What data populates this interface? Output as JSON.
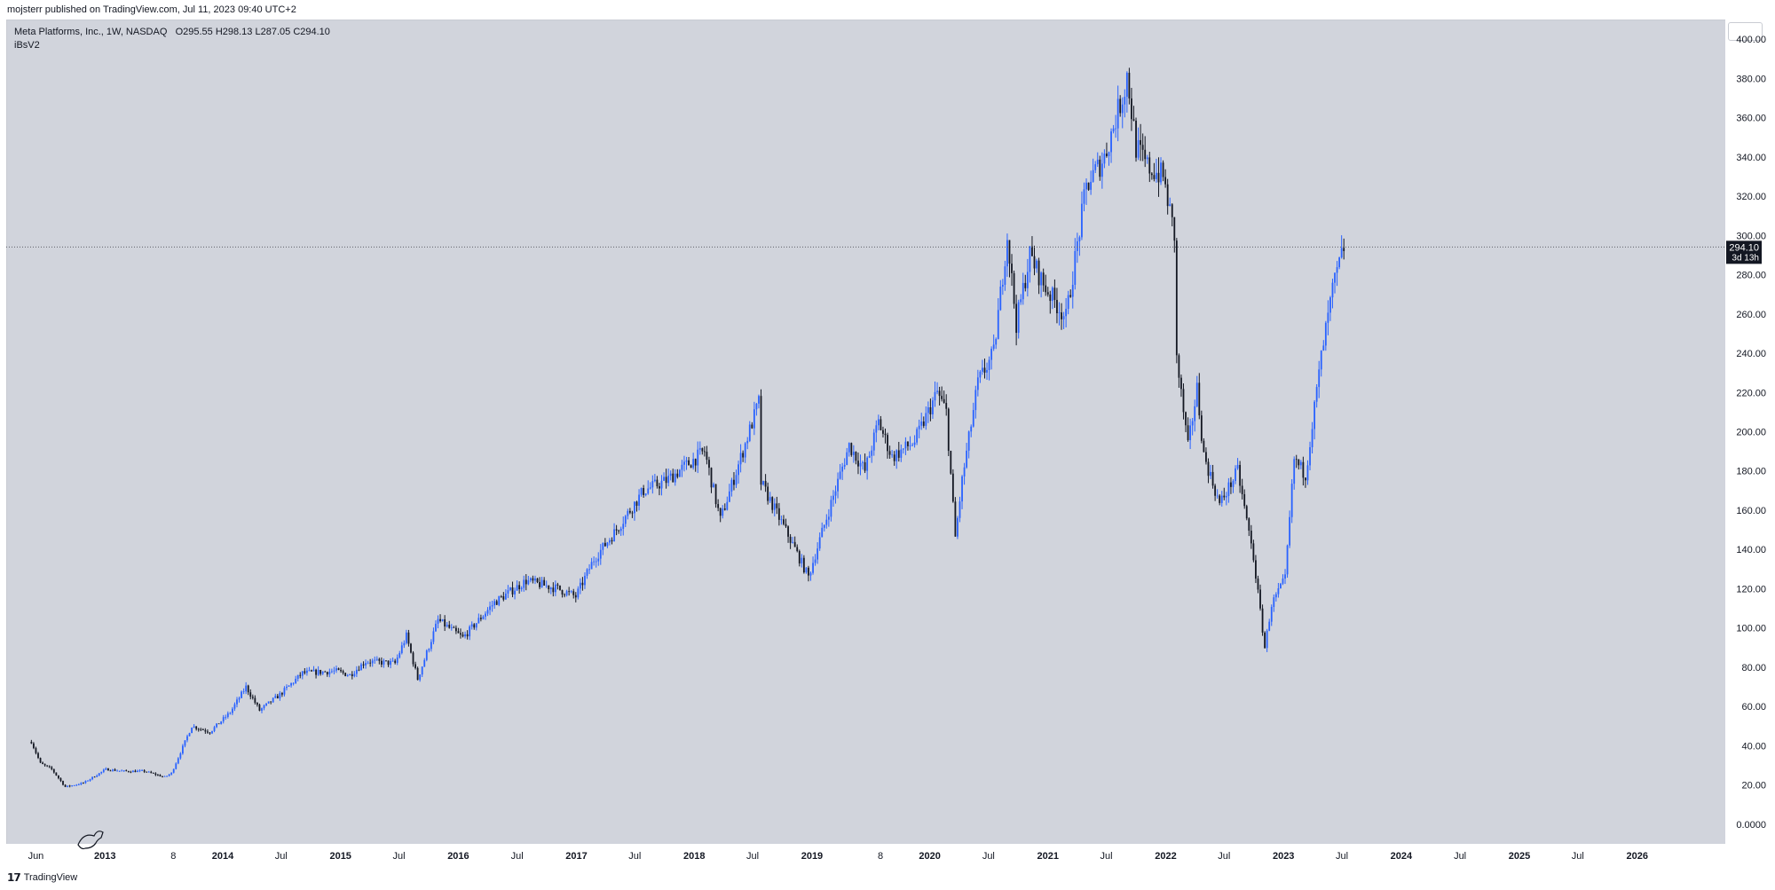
{
  "header": {
    "published_by": "mojsterr published on TradingView.com, Jul 11, 2023 09:40 UTC+2"
  },
  "legend": {
    "symbol_line": "Meta Platforms, Inc., 1W, NASDAQ",
    "ohlc": {
      "open": "O295.55",
      "high": "H298.13",
      "low": "L287.05",
      "close": "C294.10"
    },
    "indicator": "iBsV2"
  },
  "price_badge": {
    "value": "294.10",
    "countdown": "3d 13h"
  },
  "footer": {
    "brand": "TradingView"
  },
  "colors": {
    "background": "#d1d4dc",
    "up_candle": "#2962ff",
    "down_candle": "#131722",
    "last_price_line": "#5d6067",
    "badge": "#131722"
  },
  "chart_data": {
    "type": "candlestick-line",
    "symbol": "META",
    "interval": "1W",
    "ylim": [
      -10,
      410
    ],
    "y_ticks": [
      "0.0000",
      "20.00",
      "40.00",
      "60.00",
      "80.00",
      "100.00",
      "120.00",
      "140.00",
      "160.00",
      "180.00",
      "200.00",
      "220.00",
      "240.00",
      "260.00",
      "280.00",
      "300.00",
      "320.00",
      "340.00",
      "360.00",
      "380.00",
      "400.00"
    ],
    "x_range": [
      "2012-03-01",
      "2026-10-01"
    ],
    "x_ticks": [
      {
        "date": "2012-06-01",
        "label": "Jun",
        "major": false
      },
      {
        "date": "2013-01-01",
        "label": "2013",
        "major": true
      },
      {
        "date": "2013-08-01",
        "label": "8",
        "major": false
      },
      {
        "date": "2014-01-01",
        "label": "2014",
        "major": true
      },
      {
        "date": "2014-07-01",
        "label": "Jul",
        "major": false
      },
      {
        "date": "2015-01-01",
        "label": "2015",
        "major": true
      },
      {
        "date": "2015-07-01",
        "label": "Jul",
        "major": false
      },
      {
        "date": "2016-01-01",
        "label": "2016",
        "major": true
      },
      {
        "date": "2016-07-01",
        "label": "Jul",
        "major": false
      },
      {
        "date": "2017-01-01",
        "label": "2017",
        "major": true
      },
      {
        "date": "2017-07-01",
        "label": "Jul",
        "major": false
      },
      {
        "date": "2018-01-01",
        "label": "2018",
        "major": true
      },
      {
        "date": "2018-07-01",
        "label": "Jul",
        "major": false
      },
      {
        "date": "2019-01-01",
        "label": "2019",
        "major": true
      },
      {
        "date": "2019-08-01",
        "label": "8",
        "major": false
      },
      {
        "date": "2020-01-01",
        "label": "2020",
        "major": true
      },
      {
        "date": "2020-07-01",
        "label": "Jul",
        "major": false
      },
      {
        "date": "2021-01-01",
        "label": "2021",
        "major": true
      },
      {
        "date": "2021-07-01",
        "label": "Jul",
        "major": false
      },
      {
        "date": "2022-01-01",
        "label": "2022",
        "major": true
      },
      {
        "date": "2022-07-01",
        "label": "Jul",
        "major": false
      },
      {
        "date": "2023-01-01",
        "label": "2023",
        "major": true
      },
      {
        "date": "2023-07-01",
        "label": "Jul",
        "major": false
      },
      {
        "date": "2024-01-01",
        "label": "2024",
        "major": true
      },
      {
        "date": "2024-07-01",
        "label": "Jul",
        "major": false
      },
      {
        "date": "2025-01-01",
        "label": "2025",
        "major": true
      },
      {
        "date": "2025-07-01",
        "label": "Jul",
        "major": false
      },
      {
        "date": "2026-01-01",
        "label": "2026",
        "major": true
      }
    ],
    "last_price": 294.1,
    "key_points": [
      {
        "date": "2012-05-18",
        "price": 42
      },
      {
        "date": "2012-06-15",
        "price": 31
      },
      {
        "date": "2012-07-20",
        "price": 28
      },
      {
        "date": "2012-08-31",
        "price": 19
      },
      {
        "date": "2012-10-26",
        "price": 21
      },
      {
        "date": "2013-01-04",
        "price": 28
      },
      {
        "date": "2013-03-01",
        "price": 27
      },
      {
        "date": "2013-05-03",
        "price": 27
      },
      {
        "date": "2013-07-05",
        "price": 24
      },
      {
        "date": "2013-07-26",
        "price": 26
      },
      {
        "date": "2013-09-27",
        "price": 50
      },
      {
        "date": "2013-11-22",
        "price": 47
      },
      {
        "date": "2014-01-24",
        "price": 57
      },
      {
        "date": "2014-03-14",
        "price": 70
      },
      {
        "date": "2014-04-25",
        "price": 58
      },
      {
        "date": "2014-06-27",
        "price": 66
      },
      {
        "date": "2014-09-05",
        "price": 77
      },
      {
        "date": "2014-12-19",
        "price": 78
      },
      {
        "date": "2015-01-30",
        "price": 76
      },
      {
        "date": "2015-03-20",
        "price": 83
      },
      {
        "date": "2015-06-19",
        "price": 82
      },
      {
        "date": "2015-07-24",
        "price": 96
      },
      {
        "date": "2015-08-28",
        "price": 74
      },
      {
        "date": "2015-10-30",
        "price": 104
      },
      {
        "date": "2016-01-15",
        "price": 95
      },
      {
        "date": "2016-04-22",
        "price": 113
      },
      {
        "date": "2016-07-29",
        "price": 124
      },
      {
        "date": "2016-11-04",
        "price": 120
      },
      {
        "date": "2016-12-30",
        "price": 116
      },
      {
        "date": "2017-02-24",
        "price": 135
      },
      {
        "date": "2017-05-05",
        "price": 150
      },
      {
        "date": "2017-07-28",
        "price": 170
      },
      {
        "date": "2017-10-06",
        "price": 175
      },
      {
        "date": "2018-02-02",
        "price": 190
      },
      {
        "date": "2018-03-23",
        "price": 155
      },
      {
        "date": "2018-07-20",
        "price": 215
      },
      {
        "date": "2018-07-27",
        "price": 174
      },
      {
        "date": "2018-10-26",
        "price": 145
      },
      {
        "date": "2018-12-21",
        "price": 126
      },
      {
        "date": "2019-01-25",
        "price": 145
      },
      {
        "date": "2019-04-26",
        "price": 193
      },
      {
        "date": "2019-06-14",
        "price": 180
      },
      {
        "date": "2019-07-26",
        "price": 205
      },
      {
        "date": "2019-09-06",
        "price": 187
      },
      {
        "date": "2019-11-15",
        "price": 195
      },
      {
        "date": "2020-01-24",
        "price": 220
      },
      {
        "date": "2020-02-21",
        "price": 210
      },
      {
        "date": "2020-03-20",
        "price": 146
      },
      {
        "date": "2020-04-10",
        "price": 175
      },
      {
        "date": "2020-05-29",
        "price": 225
      },
      {
        "date": "2020-07-17",
        "price": 240
      },
      {
        "date": "2020-08-28",
        "price": 300
      },
      {
        "date": "2020-09-25",
        "price": 255
      },
      {
        "date": "2020-11-06",
        "price": 290
      },
      {
        "date": "2020-12-18",
        "price": 275
      },
      {
        "date": "2021-02-26",
        "price": 258
      },
      {
        "date": "2021-04-30",
        "price": 325
      },
      {
        "date": "2021-06-25",
        "price": 340
      },
      {
        "date": "2021-08-27",
        "price": 375
      },
      {
        "date": "2021-09-03",
        "price": 382
      },
      {
        "date": "2021-10-01",
        "price": 345
      },
      {
        "date": "2021-11-05",
        "price": 335
      },
      {
        "date": "2021-12-24",
        "price": 330
      },
      {
        "date": "2022-01-28",
        "price": 300
      },
      {
        "date": "2022-02-04",
        "price": 237
      },
      {
        "date": "2022-03-11",
        "price": 192
      },
      {
        "date": "2022-04-08",
        "price": 222
      },
      {
        "date": "2022-04-29",
        "price": 188
      },
      {
        "date": "2022-06-17",
        "price": 163
      },
      {
        "date": "2022-08-12",
        "price": 180
      },
      {
        "date": "2022-09-30",
        "price": 136
      },
      {
        "date": "2022-11-04",
        "price": 90
      },
      {
        "date": "2022-11-25",
        "price": 112
      },
      {
        "date": "2023-01-06",
        "price": 125
      },
      {
        "date": "2023-02-03",
        "price": 186
      },
      {
        "date": "2023-03-10",
        "price": 178
      },
      {
        "date": "2023-04-28",
        "price": 238
      },
      {
        "date": "2023-06-02",
        "price": 272
      },
      {
        "date": "2023-07-07",
        "price": 294
      }
    ]
  }
}
